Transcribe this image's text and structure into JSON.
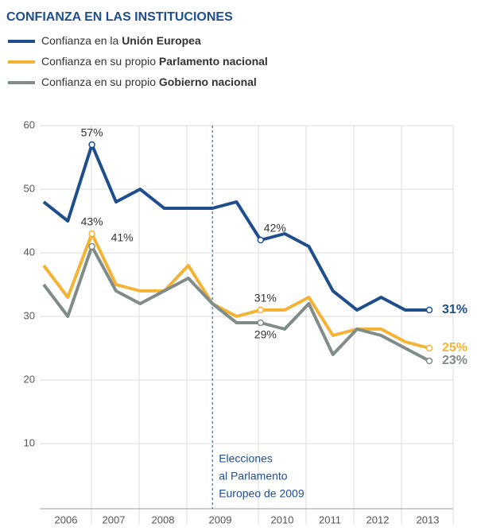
{
  "chart_data": {
    "type": "line",
    "title": "CONFIANZA EN LAS INSTITUCIONES",
    "categories": [
      null,
      null,
      null,
      null,
      null,
      null,
      null,
      null,
      null,
      null,
      null,
      null,
      null,
      null,
      null,
      null,
      null
    ],
    "year_labels": [
      "2006",
      "2007",
      "2008",
      "2009",
      "2010",
      "2011",
      "2012",
      "2013"
    ],
    "series": [
      {
        "name": [
          "Confianza en la",
          "Unión Europea"
        ],
        "color": "#1f4e8c",
        "values": [
          48,
          45,
          57,
          48,
          50,
          47,
          47,
          47,
          48,
          42,
          43,
          41,
          34,
          31,
          33,
          31,
          31
        ],
        "value_labels": [
          null,
          null,
          "57%",
          null,
          null,
          null,
          null,
          null,
          null,
          "42%",
          null,
          null,
          null,
          null,
          null,
          null,
          "31%"
        ]
      },
      {
        "name": [
          "Confianza en su propio",
          "Parlamento nacional"
        ],
        "color": "#f5b335",
        "values": [
          38,
          33,
          43,
          35,
          34,
          34,
          38,
          32,
          30,
          31,
          31,
          33,
          27,
          28,
          28,
          26,
          25
        ],
        "value_labels": [
          null,
          null,
          "43%",
          null,
          null,
          null,
          null,
          null,
          null,
          "31%",
          null,
          null,
          null,
          null,
          null,
          null,
          "25%"
        ]
      },
      {
        "name": [
          "Confianza en su propio",
          "Gobierno nacional"
        ],
        "color": "#7f8c89",
        "values": [
          35,
          30,
          41,
          34,
          32,
          34,
          36,
          32,
          29,
          29,
          28,
          32,
          24,
          28,
          27,
          25,
          23
        ],
        "value_labels": [
          null,
          null,
          "41%",
          null,
          null,
          null,
          null,
          null,
          null,
          "29%",
          null,
          null,
          null,
          null,
          null,
          null,
          "23%"
        ]
      }
    ],
    "annotation": [
      "Elecciones",
      "al Parlamento",
      "Europeo de 2009"
    ],
    "ylim": [
      0,
      60
    ],
    "yticks": [
      10,
      20,
      30,
      40,
      50,
      60
    ],
    "grid": true
  }
}
